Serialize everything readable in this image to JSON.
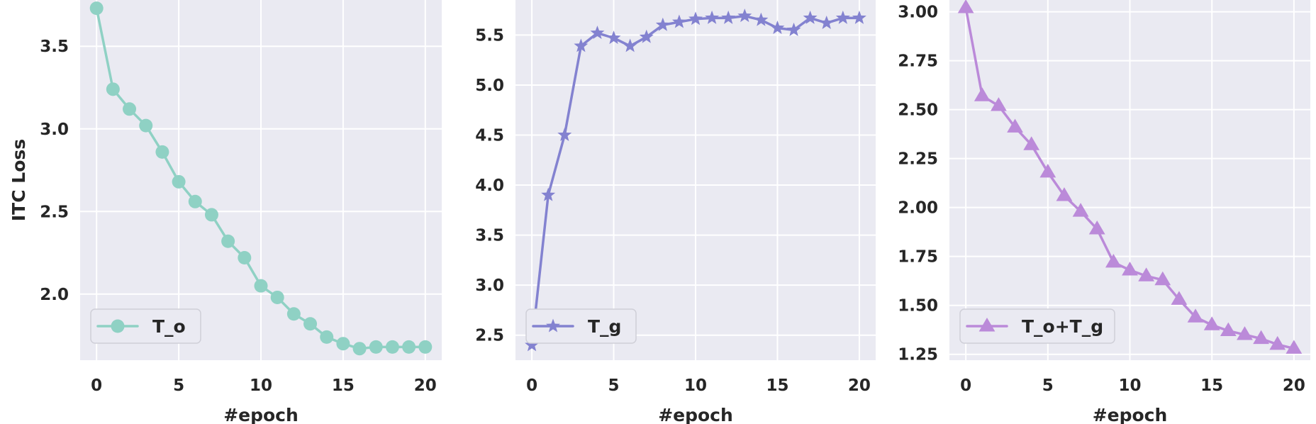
{
  "chart_data": [
    {
      "type": "line",
      "title": "",
      "xlabel": "#epoch",
      "ylabel": "ITC Loss",
      "xlim": [
        -1,
        21
      ],
      "ylim": [
        1.6,
        3.78
      ],
      "xticks": [
        0,
        5,
        10,
        15,
        20
      ],
      "yticks": [
        2.0,
        2.5,
        3.0,
        3.5
      ],
      "ytick_labels": [
        "2.0",
        "2.5",
        "3.0",
        "3.5"
      ],
      "grid": true,
      "legend_position": "lower-left",
      "series": [
        {
          "name": "T_o",
          "marker": "circle",
          "color": "#8fd1c4",
          "x": [
            0,
            1,
            2,
            3,
            4,
            5,
            6,
            7,
            8,
            9,
            10,
            11,
            12,
            13,
            14,
            15,
            16,
            17,
            18,
            19,
            20
          ],
          "values": [
            3.73,
            3.24,
            3.12,
            3.02,
            2.86,
            2.68,
            2.56,
            2.48,
            2.32,
            2.22,
            2.05,
            1.98,
            1.88,
            1.82,
            1.74,
            1.7,
            1.67,
            1.68,
            1.68,
            1.68,
            1.68
          ]
        }
      ]
    },
    {
      "type": "line",
      "title": "",
      "xlabel": "#epoch",
      "ylabel": "",
      "xlim": [
        -1,
        21
      ],
      "ylim": [
        2.25,
        5.85
      ],
      "xticks": [
        0,
        5,
        10,
        15,
        20
      ],
      "yticks": [
        2.5,
        3.0,
        3.5,
        4.0,
        4.5,
        5.0,
        5.5
      ],
      "ytick_labels": [
        "2.5",
        "3.0",
        "3.5",
        "4.0",
        "4.5",
        "5.0",
        "5.5"
      ],
      "grid": true,
      "legend_position": "lower-left",
      "series": [
        {
          "name": "T_g",
          "marker": "star",
          "color": "#8382d0",
          "x": [
            0,
            1,
            2,
            3,
            4,
            5,
            6,
            7,
            8,
            9,
            10,
            11,
            12,
            13,
            14,
            15,
            16,
            17,
            18,
            19,
            20
          ],
          "values": [
            2.4,
            3.9,
            4.5,
            5.39,
            5.52,
            5.47,
            5.39,
            5.48,
            5.6,
            5.63,
            5.66,
            5.67,
            5.67,
            5.69,
            5.65,
            5.57,
            5.55,
            5.67,
            5.62,
            5.67,
            5.67
          ]
        }
      ]
    },
    {
      "type": "line",
      "title": "",
      "xlabel": "#epoch",
      "ylabel": "",
      "xlim": [
        -1,
        21
      ],
      "ylim": [
        1.22,
        3.06
      ],
      "xticks": [
        0,
        5,
        10,
        15,
        20
      ],
      "yticks": [
        1.25,
        1.5,
        1.75,
        2.0,
        2.25,
        2.5,
        2.75,
        3.0
      ],
      "ytick_labels": [
        "1.25",
        "1.50",
        "1.75",
        "2.00",
        "2.25",
        "2.50",
        "2.75",
        "3.00"
      ],
      "grid": true,
      "legend_position": "lower-left",
      "series": [
        {
          "name": "T_o+T_g",
          "marker": "triangle",
          "color": "#bb8ad9",
          "x": [
            0,
            1,
            2,
            3,
            4,
            5,
            6,
            7,
            8,
            9,
            10,
            11,
            12,
            13,
            14,
            15,
            16,
            17,
            18,
            19,
            20
          ],
          "values": [
            3.02,
            2.57,
            2.52,
            2.41,
            2.32,
            2.18,
            2.06,
            1.98,
            1.89,
            1.72,
            1.68,
            1.65,
            1.63,
            1.53,
            1.44,
            1.4,
            1.37,
            1.35,
            1.33,
            1.3,
            1.28
          ]
        }
      ]
    }
  ]
}
